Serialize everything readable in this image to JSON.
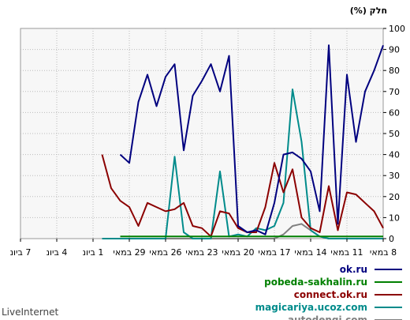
{
  "brand": "LiveInternet",
  "chart_data": {
    "type": "line",
    "ylabel": "חלק (%)",
    "ylim": [
      0,
      100
    ],
    "yticks": [
      "0",
      "10",
      "20",
      "30",
      "40",
      "50",
      "60",
      "70",
      "80",
      "90",
      "100"
    ],
    "grid": true,
    "legend_position": "bottom-right",
    "x_tick_labels": [
      "8 במאי",
      "11 במאי",
      "14 במאי",
      "17 במאי",
      "20 במאי",
      "23 במאי",
      "26 במאי",
      "29 במאי",
      "1 ביונ",
      "4 ביונ",
      "7 ביונ"
    ],
    "x_count": 41,
    "series": [
      {
        "name": "ok.ru",
        "color": "#00007f",
        "values": [
          92,
          80,
          70,
          46,
          78,
          7,
          92,
          13,
          32,
          38,
          41,
          40,
          17,
          2,
          4,
          3,
          6,
          87,
          70,
          83,
          75,
          68,
          42,
          83,
          77,
          63,
          78,
          65,
          36,
          40,
          null,
          null,
          null,
          null,
          null,
          null,
          null,
          null,
          null,
          null,
          null
        ]
      },
      {
        "name": "pobeda-sakhalin.ru",
        "color": "#008000",
        "values": [
          1,
          1,
          1,
          1,
          1,
          1,
          1,
          1,
          1,
          1,
          1,
          1,
          1,
          1,
          1,
          1,
          1,
          1,
          1,
          1,
          1,
          1,
          1,
          1,
          1,
          1,
          1,
          1,
          1,
          1,
          null,
          null,
          null,
          null,
          null,
          null,
          null,
          null,
          null,
          null,
          null
        ]
      },
      {
        "name": "connect.ok.ru",
        "color": "#8b0000",
        "values": [
          5,
          13,
          17,
          21,
          22,
          4,
          25,
          3,
          5,
          10,
          33,
          22,
          36,
          15,
          3,
          3,
          5,
          12,
          13,
          1,
          5,
          6,
          17,
          14,
          13,
          15,
          17,
          6,
          15,
          18,
          24,
          40,
          null,
          null,
          null,
          null,
          null,
          null,
          null,
          null,
          null
        ]
      },
      {
        "name": "magicariya.ucoz.com",
        "color": "#008b8b",
        "values": [
          0,
          0,
          0,
          0,
          0,
          0,
          0,
          1,
          4,
          46,
          71,
          17,
          6,
          4,
          5,
          1,
          2,
          1,
          32,
          0,
          0,
          0,
          3,
          39,
          0,
          0,
          0,
          0,
          0,
          0,
          0,
          0,
          null,
          null,
          null,
          null,
          null,
          null,
          null,
          null,
          null
        ]
      },
      {
        "name": "autodengi.com",
        "color": "#808080",
        "values": [
          0,
          0,
          0,
          0,
          0,
          0,
          0,
          1,
          4,
          7,
          6,
          2,
          0,
          0,
          0,
          0,
          0,
          0,
          0,
          0,
          0,
          0,
          0,
          0,
          0,
          0,
          0,
          0,
          0,
          0,
          0,
          0,
          null,
          null,
          null,
          null,
          null,
          null,
          null,
          null,
          null
        ]
      }
    ]
  }
}
